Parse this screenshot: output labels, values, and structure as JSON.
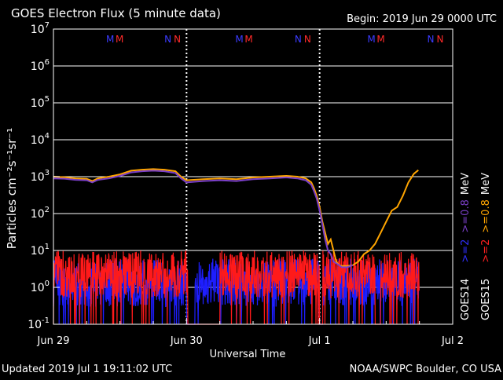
{
  "chart_data": {
    "type": "line",
    "title": "GOES Electron Flux (5 minute data)",
    "begin_label": "Begin: 2019 Jun 29 0000 UTC",
    "updated_label": "Updated 2019 Jul  1 19:11:02 UTC",
    "source_label": "NOAA/SWPC Boulder, CO USA",
    "xlabel": "Universal Time",
    "ylabel": "Particles cm⁻²s⁻¹sr⁻¹",
    "y_scale": "log",
    "ylim_exp": [
      -1,
      7
    ],
    "xlim_hours": [
      0,
      72
    ],
    "x_ticks": [
      {
        "label": "Jun 29",
        "hour": 0
      },
      {
        "label": "Jun 30",
        "hour": 24
      },
      {
        "label": "Jul 1",
        "hour": 48
      },
      {
        "label": "Jul 2",
        "hour": 72
      }
    ],
    "y_ticks": [
      {
        "base": "10",
        "exp": "-1",
        "value": -1
      },
      {
        "base": "10",
        "exp": "0",
        "value": 0
      },
      {
        "base": "10",
        "exp": "1",
        "value": 1
      },
      {
        "base": "10",
        "exp": "2",
        "value": 2
      },
      {
        "base": "10",
        "exp": "3",
        "value": 3
      },
      {
        "base": "10",
        "exp": "4",
        "value": 4
      },
      {
        "base": "10",
        "exp": "5",
        "value": 5
      },
      {
        "base": "10",
        "exp": "6",
        "value": 6
      },
      {
        "base": "10",
        "exp": "7",
        "value": 7
      }
    ],
    "grid": true,
    "threshold": {
      "value": 1000,
      "style": "dashed"
    },
    "legend": {
      "placement": "right",
      "groups": [
        {
          "satellite": "GOES14",
          "entries": [
            {
              "label": ">=2",
              "color": "#2f2fff"
            },
            {
              "label": ">=0.8",
              "color": "#7a3fc8"
            }
          ],
          "unit": "MeV"
        },
        {
          "satellite": "GOES15",
          "entries": [
            {
              "label": ">=2",
              "color": "#ff2020"
            },
            {
              "label": ">=0.8",
              "color": "#ffa500"
            }
          ],
          "unit": "MeV"
        }
      ]
    },
    "markers": [
      {
        "hour": 9.5,
        "letters": [
          {
            "t": "M",
            "c": "#3b3bff"
          },
          {
            "t": "M",
            "c": "#ff2a2a"
          }
        ]
      },
      {
        "hour": 20.0,
        "letters": [
          {
            "t": "N",
            "c": "#3b3bff"
          },
          {
            "t": "N",
            "c": "#ff2a2a"
          }
        ]
      },
      {
        "hour": 32.8,
        "letters": [
          {
            "t": "M",
            "c": "#3b3bff"
          },
          {
            "t": "M",
            "c": "#ff2a2a"
          }
        ]
      },
      {
        "hour": 43.5,
        "letters": [
          {
            "t": "N",
            "c": "#3b3bff"
          },
          {
            "t": "N",
            "c": "#ff2a2a"
          }
        ]
      },
      {
        "hour": 56.6,
        "letters": [
          {
            "t": "M",
            "c": "#3b3bff"
          },
          {
            "t": "M",
            "c": "#ff2a2a"
          }
        ]
      },
      {
        "hour": 67.4,
        "letters": [
          {
            "t": "N",
            "c": "#3b3bff"
          },
          {
            "t": "N",
            "c": "#ff2a2a"
          }
        ]
      }
    ],
    "series": [
      {
        "name": "GOES15 >=0.8 MeV",
        "color": "#ffa500",
        "x": [
          0,
          2,
          4,
          6,
          7,
          8,
          10,
          12,
          14,
          16,
          18,
          20,
          22,
          23,
          24,
          25,
          27,
          30,
          33,
          36,
          39,
          42,
          44,
          45.5,
          46.5,
          47,
          47.5,
          48,
          48.5,
          49.5,
          50,
          50.5,
          51,
          51.5,
          52,
          53,
          54,
          55,
          56,
          57,
          58,
          59,
          60,
          61,
          62,
          63,
          64,
          65,
          65.8
        ],
        "y": [
          1000,
          960,
          900,
          870,
          760,
          900,
          1000,
          1150,
          1450,
          1550,
          1600,
          1550,
          1400,
          1000,
          800,
          820,
          850,
          900,
          850,
          950,
          1000,
          1050,
          1000,
          900,
          700,
          480,
          300,
          150,
          60,
          15,
          20,
          10,
          5,
          4,
          3.8,
          3.8,
          4,
          5,
          8,
          10,
          15,
          30,
          60,
          120,
          150,
          300,
          700,
          1200,
          1500
        ]
      },
      {
        "name": "GOES14 >=0.8 MeV",
        "color": "#7a3fc8",
        "x": [
          0,
          2,
          4,
          6,
          7,
          8,
          10,
          12,
          14,
          16,
          18,
          20,
          22,
          23,
          24,
          25,
          27,
          30,
          33,
          36,
          39,
          42,
          44,
          45.5,
          46.5,
          47,
          47.5,
          48,
          48.5,
          49,
          49.5,
          50,
          50.5,
          51,
          51.5,
          52,
          53,
          54
        ],
        "y": [
          900,
          880,
          820,
          800,
          700,
          820,
          900,
          1050,
          1300,
          1400,
          1450,
          1400,
          1250,
          900,
          700,
          720,
          760,
          800,
          760,
          850,
          900,
          950,
          900,
          800,
          600,
          400,
          250,
          120,
          50,
          20,
          10,
          8,
          5,
          4.5,
          4,
          3.5,
          3.5,
          4
        ]
      }
    ],
    "noise_series": [
      {
        "name": "GOES14 >=2 MeV",
        "color": "#1e1eff",
        "x_range": [
          0,
          66
        ],
        "typical": [
          0.3,
          6
        ],
        "dropouts": [
          [
            24,
            25.5
          ],
          [
            48,
            48.6
          ]
        ]
      },
      {
        "name": "GOES15 >=2 MeV",
        "color": "#ff1a1a",
        "x_range": [
          0,
          66
        ],
        "typical": [
          0.5,
          10
        ],
        "dropouts": [
          [
            24.2,
            30
          ],
          [
            48,
            48.6
          ],
          [
            58,
            59
          ]
        ]
      }
    ]
  }
}
